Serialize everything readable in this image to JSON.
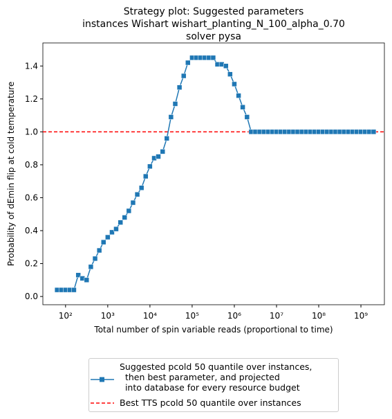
{
  "chart_data": {
    "type": "line",
    "title": "Strategy plot: Suggested parameters\ninstances Wishart wishart_planting_N_100_alpha_0.70\nsolver pysa",
    "xlabel": "Total number of spin variable reads (proportional to time)",
    "ylabel": "Probability of dEmin flip at cold temperature",
    "x": [
      63.1,
      79.4,
      100.0,
      126.0,
      158.0,
      200.0,
      251.0,
      316.0,
      398.0,
      501.0,
      631.0,
      794.0,
      1000.0,
      1260.0,
      1580.0,
      2000.0,
      2510.0,
      3160.0,
      3980.0,
      5010.0,
      6310.0,
      7940.0,
      10000.0,
      12600.0,
      15800.0,
      20000.0,
      25100.0,
      31600.0,
      39800.0,
      50100.0,
      63100.0,
      79400.0,
      100000.0,
      126000.0,
      158000.0,
      200000.0,
      251000.0,
      316000.0,
      398000.0,
      501000.0,
      631000.0,
      794000.0,
      1000000.0,
      1260000.0,
      1580000.0,
      2000000.0,
      2510000.0,
      3160000.0,
      3980000.0,
      5010000.0,
      6310000.0,
      7940000.0,
      10000000.0,
      12600000.0,
      15800000.0,
      20000000.0,
      25100000.0,
      31600000.0,
      39800000.0,
      50100000.0,
      63100000.0,
      79400000.0,
      100000000.0,
      126000000.0,
      158000000.0,
      200000000.0,
      251000000.0,
      316000000.0,
      398000000.0,
      501000000.0,
      631000000.0,
      794000000.0,
      1000000000.0,
      1260000000.0,
      1580000000.0,
      2000000000.0
    ],
    "series": [
      {
        "name": "Suggested pcold 50 quantile over instances,\n  then best parameter, and projected\n  into database for every resource budget",
        "color": "#1f77b4",
        "marker": "square",
        "values": [
          0.04,
          0.04,
          0.04,
          0.04,
          0.04,
          0.13,
          0.11,
          0.1,
          0.18,
          0.23,
          0.28,
          0.33,
          0.36,
          0.39,
          0.41,
          0.45,
          0.48,
          0.52,
          0.57,
          0.62,
          0.66,
          0.73,
          0.79,
          0.84,
          0.85,
          0.88,
          0.96,
          1.09,
          1.17,
          1.27,
          1.34,
          1.42,
          1.45,
          1.45,
          1.45,
          1.45,
          1.45,
          1.45,
          1.41,
          1.41,
          1.4,
          1.35,
          1.29,
          1.22,
          1.15,
          1.09,
          1.0,
          1.0,
          1.0,
          1.0,
          1.0,
          1.0,
          1.0,
          1.0,
          1.0,
          1.0,
          1.0,
          1.0,
          1.0,
          1.0,
          1.0,
          1.0,
          1.0,
          1.0,
          1.0,
          1.0,
          1.0,
          1.0,
          1.0,
          1.0,
          1.0,
          1.0,
          1.0,
          1.0,
          1.0,
          1.0
        ]
      }
    ],
    "reference_lines": [
      {
        "name": "Best TTS pcold 50 quantile over instances",
        "value": 1.0,
        "color": "#ff0000",
        "dashed": true
      }
    ],
    "xscale": "log",
    "xlim": [
      29,
      3600000000.0
    ],
    "xticks": [
      {
        "value": 100,
        "label": "10²"
      },
      {
        "value": 1000,
        "label": "10³"
      },
      {
        "value": 10000,
        "label": "10⁴"
      },
      {
        "value": 100000,
        "label": "10⁵"
      },
      {
        "value": 1000000,
        "label": "10⁶"
      },
      {
        "value": 10000000,
        "label": "10⁷"
      },
      {
        "value": 100000000,
        "label": "10⁸"
      },
      {
        "value": 1000000000,
        "label": "10⁹"
      }
    ],
    "ylim": [
      -0.05,
      1.54
    ],
    "yticks": [
      {
        "value": 0,
        "label": "0.0"
      },
      0.2,
      0.4,
      0.6,
      0.8,
      {
        "value": 1,
        "label": "1.0"
      },
      1.2,
      1.4
    ],
    "grid": false,
    "legend": "below"
  }
}
